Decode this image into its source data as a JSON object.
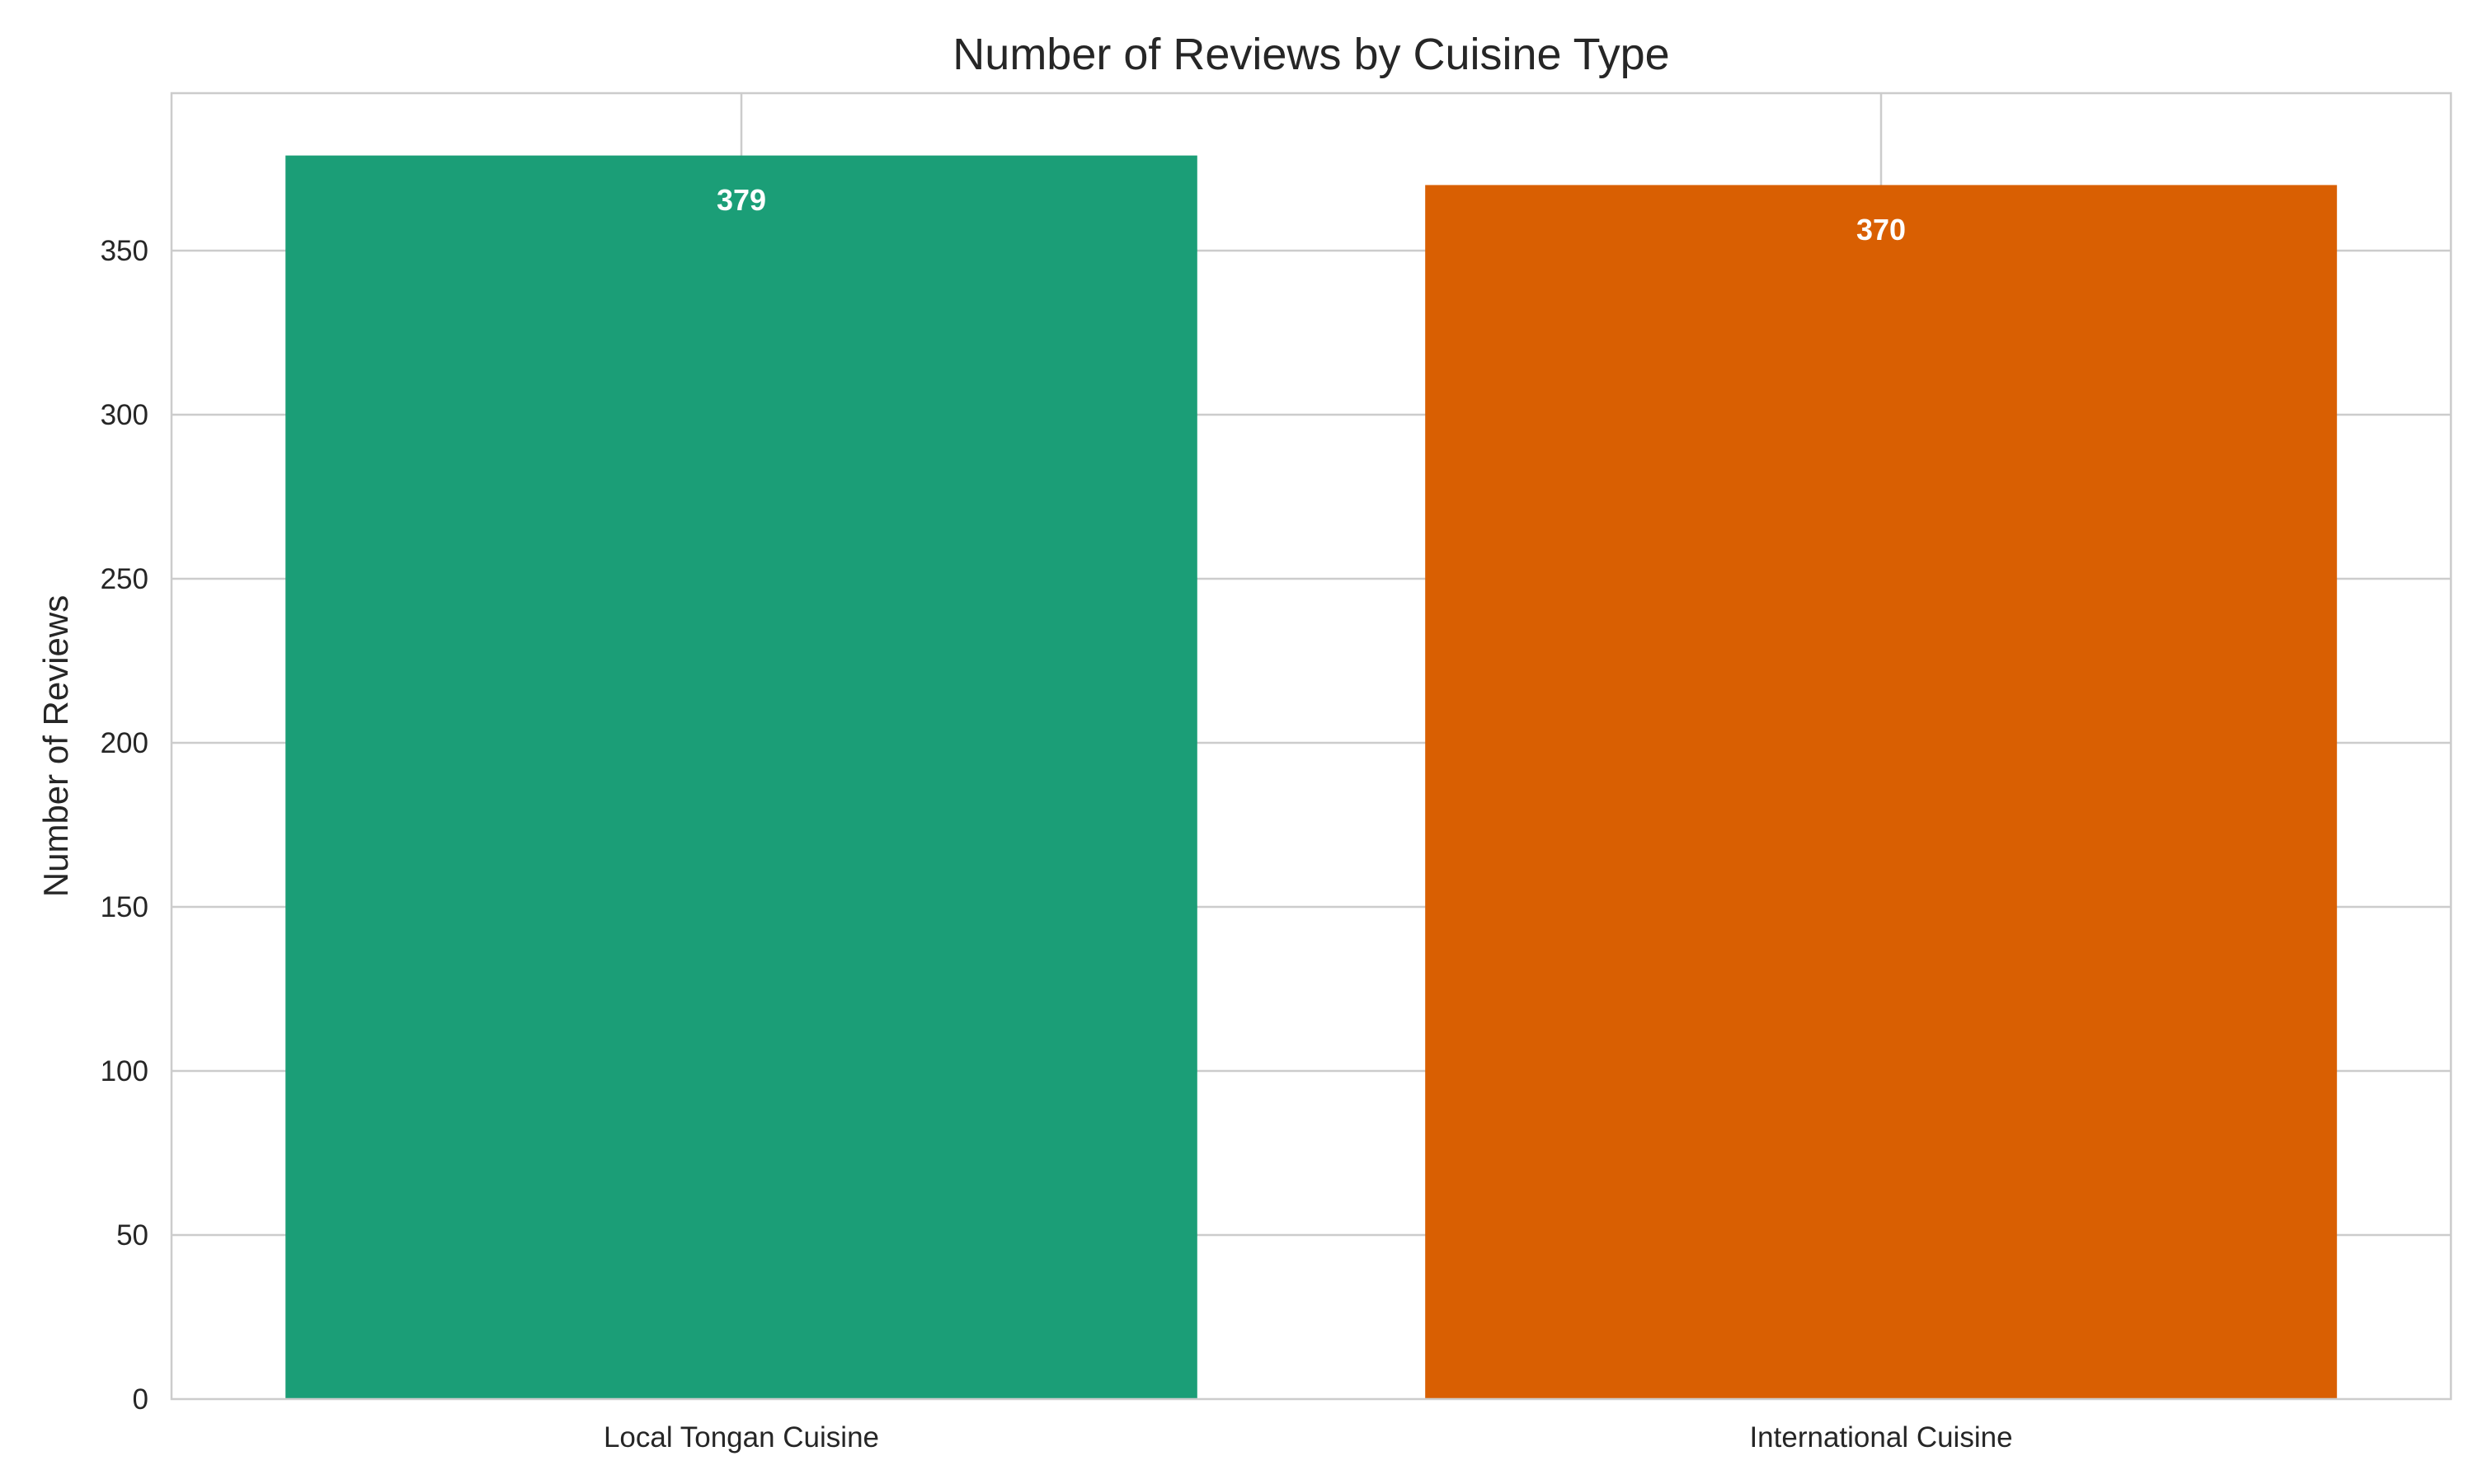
{
  "chart_data": {
    "type": "bar",
    "title": "Number of Reviews by Cuisine Type",
    "xlabel": "",
    "ylabel": "Number of Reviews",
    "categories": [
      "Local Tongan Cuisine",
      "International Cuisine"
    ],
    "values": [
      379,
      370
    ],
    "data_labels": [
      "379",
      "370"
    ],
    "bar_colors": [
      "#1b9e77",
      "#d95f02"
    ],
    "ylim": [
      0,
      398
    ],
    "yticks": [
      0,
      50,
      100,
      150,
      200,
      250,
      300,
      350
    ],
    "grid": true,
    "legend": "none"
  }
}
